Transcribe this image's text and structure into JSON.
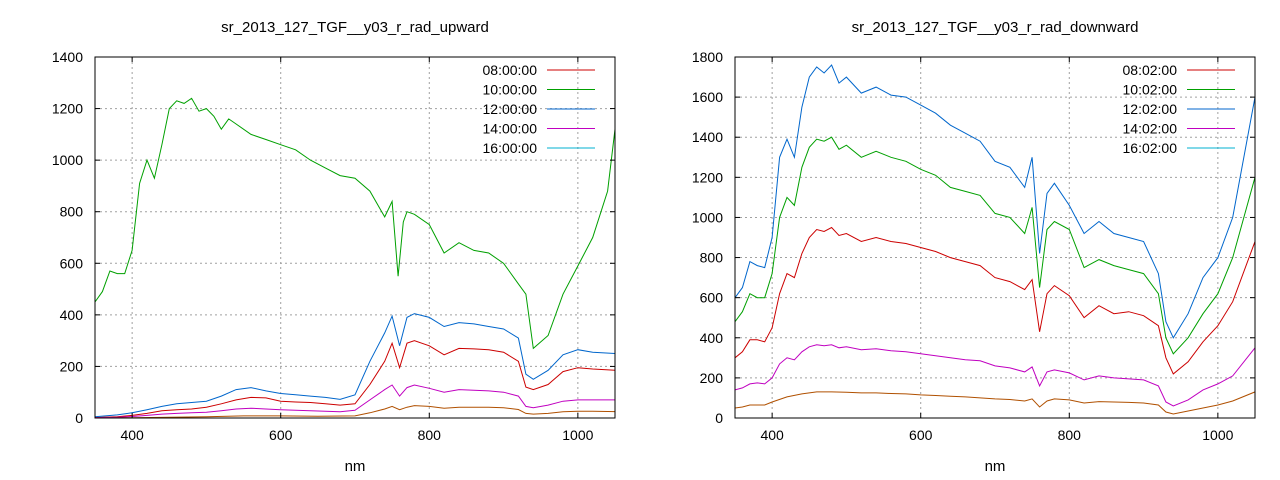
{
  "chart_data": [
    {
      "type": "line",
      "title": "sr_2013_127_TGF__y03_r_rad_upward",
      "xlabel": "nm",
      "ylabel": "",
      "xlim": [
        350,
        1050
      ],
      "ylim": [
        0,
        1400
      ],
      "xticks": [
        400,
        600,
        800,
        1000
      ],
      "yticks": [
        0,
        200,
        400,
        600,
        800,
        1000,
        1200,
        1400
      ],
      "grid": true,
      "legend_position": "top-right",
      "series": [
        {
          "name": "08:00:00",
          "color": "#cc0000",
          "x": [
            350,
            380,
            400,
            420,
            440,
            460,
            480,
            500,
            520,
            540,
            560,
            580,
            600,
            620,
            640,
            660,
            680,
            700,
            720,
            740,
            750,
            760,
            770,
            780,
            800,
            820,
            840,
            860,
            880,
            900,
            920,
            930,
            940,
            960,
            980,
            1000,
            1020,
            1050
          ],
          "y": [
            2,
            5,
            10,
            18,
            28,
            32,
            35,
            42,
            55,
            70,
            80,
            78,
            65,
            62,
            60,
            55,
            50,
            55,
            130,
            220,
            290,
            195,
            290,
            300,
            280,
            245,
            270,
            268,
            265,
            255,
            220,
            120,
            110,
            130,
            180,
            195,
            190,
            185
          ]
        },
        {
          "name": "10:00:00",
          "color": "#00a000",
          "x": [
            350,
            360,
            370,
            380,
            390,
            400,
            410,
            420,
            430,
            440,
            450,
            460,
            470,
            480,
            490,
            500,
            510,
            520,
            530,
            540,
            560,
            580,
            600,
            620,
            640,
            660,
            680,
            700,
            720,
            740,
            750,
            758,
            765,
            770,
            780,
            800,
            820,
            840,
            860,
            880,
            900,
            920,
            930,
            940,
            960,
            980,
            1000,
            1020,
            1040,
            1050
          ],
          "y": [
            450,
            490,
            570,
            560,
            560,
            650,
            910,
            1000,
            930,
            1060,
            1200,
            1230,
            1220,
            1240,
            1190,
            1200,
            1170,
            1120,
            1160,
            1140,
            1100,
            1080,
            1060,
            1040,
            1000,
            970,
            940,
            930,
            880,
            780,
            840,
            550,
            760,
            800,
            790,
            750,
            640,
            680,
            650,
            640,
            600,
            520,
            480,
            270,
            320,
            480,
            590,
            700,
            880,
            1120
          ]
        },
        {
          "name": "12:00:00",
          "color": "#0066cc",
          "x": [
            350,
            380,
            400,
            420,
            440,
            460,
            480,
            500,
            520,
            540,
            560,
            580,
            600,
            620,
            640,
            660,
            680,
            700,
            720,
            740,
            750,
            760,
            770,
            780,
            800,
            820,
            840,
            860,
            880,
            900,
            920,
            930,
            940,
            960,
            980,
            1000,
            1020,
            1050
          ],
          "y": [
            5,
            12,
            20,
            32,
            45,
            55,
            60,
            65,
            85,
            110,
            118,
            105,
            95,
            90,
            85,
            80,
            72,
            90,
            220,
            330,
            395,
            280,
            390,
            405,
            390,
            355,
            370,
            365,
            355,
            345,
            310,
            170,
            150,
            185,
            245,
            265,
            255,
            250
          ]
        },
        {
          "name": "14:00:00",
          "color": "#c000c0",
          "x": [
            350,
            380,
            400,
            420,
            440,
            460,
            480,
            500,
            520,
            540,
            560,
            580,
            600,
            620,
            640,
            660,
            680,
            700,
            720,
            740,
            750,
            760,
            770,
            780,
            800,
            820,
            840,
            860,
            880,
            900,
            920,
            930,
            940,
            960,
            980,
            1000,
            1020,
            1050
          ],
          "y": [
            1,
            3,
            6,
            10,
            15,
            18,
            20,
            22,
            28,
            35,
            38,
            35,
            32,
            30,
            28,
            26,
            24,
            30,
            70,
            110,
            128,
            85,
            118,
            128,
            115,
            100,
            110,
            108,
            105,
            100,
            85,
            45,
            40,
            50,
            65,
            70,
            70,
            70
          ]
        },
        {
          "name": "16:00:00",
          "color": "#00b0d0",
          "x": [
            350,
            400,
            450,
            500,
            550,
            600,
            650,
            700,
            720,
            740,
            760,
            780,
            800,
            820,
            840,
            860,
            880,
            900,
            920,
            940,
            960,
            980,
            1000,
            1020,
            1050
          ],
          "y": [
            0,
            0,
            0,
            0,
            0,
            0,
            0,
            0,
            0,
            0,
            0,
            0,
            0,
            0,
            0,
            0,
            0,
            0,
            0,
            0,
            0,
            0,
            0,
            0,
            0
          ]
        }
      ],
      "extra_series": [
        {
          "name": "",
          "color": "#b05000",
          "x": [
            350,
            400,
            450,
            500,
            550,
            600,
            650,
            700,
            720,
            740,
            750,
            760,
            770,
            780,
            800,
            820,
            840,
            860,
            880,
            900,
            920,
            930,
            940,
            960,
            980,
            1000,
            1020,
            1050
          ],
          "y": [
            0,
            1,
            3,
            5,
            8,
            8,
            7,
            8,
            20,
            35,
            45,
            32,
            42,
            48,
            45,
            38,
            42,
            42,
            42,
            40,
            33,
            18,
            15,
            18,
            24,
            26,
            26,
            25
          ]
        }
      ]
    },
    {
      "type": "line",
      "title": "sr_2013_127_TGF__y03_r_rad_downward",
      "xlabel": "nm",
      "ylabel": "",
      "xlim": [
        350,
        1050
      ],
      "ylim": [
        0,
        1800
      ],
      "xticks": [
        400,
        600,
        800,
        1000
      ],
      "yticks": [
        0,
        200,
        400,
        600,
        800,
        1000,
        1200,
        1400,
        1600,
        1800
      ],
      "grid": true,
      "legend_position": "top-right",
      "series": [
        {
          "name": "08:02:00",
          "color": "#cc0000",
          "x": [
            350,
            360,
            370,
            380,
            390,
            400,
            410,
            420,
            430,
            440,
            450,
            460,
            470,
            480,
            490,
            500,
            520,
            540,
            560,
            580,
            600,
            620,
            640,
            660,
            680,
            700,
            720,
            740,
            750,
            760,
            770,
            780,
            800,
            820,
            840,
            860,
            880,
            900,
            920,
            930,
            940,
            960,
            980,
            1000,
            1020,
            1050
          ],
          "y": [
            300,
            330,
            390,
            390,
            380,
            450,
            620,
            720,
            700,
            820,
            900,
            940,
            930,
            950,
            910,
            920,
            880,
            900,
            880,
            870,
            850,
            830,
            800,
            780,
            760,
            700,
            680,
            640,
            690,
            430,
            620,
            660,
            610,
            500,
            560,
            520,
            530,
            510,
            460,
            300,
            220,
            280,
            380,
            460,
            580,
            880
          ]
        },
        {
          "name": "10:02:00",
          "color": "#00a000",
          "x": [
            350,
            360,
            370,
            380,
            390,
            400,
            410,
            420,
            430,
            440,
            450,
            460,
            470,
            480,
            490,
            500,
            520,
            540,
            560,
            580,
            600,
            620,
            640,
            660,
            680,
            700,
            720,
            740,
            750,
            760,
            770,
            780,
            800,
            820,
            840,
            860,
            880,
            900,
            920,
            930,
            940,
            960,
            980,
            1000,
            1020,
            1050
          ],
          "y": [
            480,
            530,
            620,
            600,
            600,
            720,
            1000,
            1100,
            1060,
            1250,
            1350,
            1390,
            1380,
            1400,
            1340,
            1360,
            1300,
            1330,
            1300,
            1280,
            1240,
            1210,
            1150,
            1130,
            1110,
            1020,
            1000,
            920,
            1050,
            650,
            940,
            980,
            940,
            750,
            790,
            760,
            740,
            720,
            620,
            400,
            320,
            400,
            520,
            620,
            800,
            1200
          ]
        },
        {
          "name": "12:02:00",
          "color": "#0066cc",
          "x": [
            350,
            360,
            370,
            380,
            390,
            400,
            410,
            420,
            430,
            440,
            450,
            460,
            470,
            480,
            490,
            500,
            520,
            540,
            560,
            580,
            600,
            620,
            640,
            660,
            680,
            700,
            720,
            740,
            750,
            760,
            770,
            780,
            800,
            820,
            840,
            860,
            880,
            900,
            920,
            930,
            940,
            960,
            980,
            1000,
            1020,
            1050
          ],
          "y": [
            600,
            650,
            780,
            760,
            750,
            900,
            1300,
            1390,
            1300,
            1550,
            1700,
            1750,
            1720,
            1760,
            1670,
            1700,
            1620,
            1650,
            1610,
            1600,
            1560,
            1520,
            1460,
            1420,
            1380,
            1280,
            1250,
            1150,
            1300,
            820,
            1120,
            1170,
            1060,
            920,
            980,
            920,
            900,
            880,
            720,
            480,
            400,
            520,
            700,
            800,
            1000,
            1600
          ]
        },
        {
          "name": "14:02:00",
          "color": "#c000c0",
          "x": [
            350,
            360,
            370,
            380,
            390,
            400,
            410,
            420,
            430,
            440,
            450,
            460,
            470,
            480,
            490,
            500,
            520,
            540,
            560,
            580,
            600,
            620,
            640,
            660,
            680,
            700,
            720,
            740,
            750,
            760,
            770,
            780,
            800,
            820,
            840,
            860,
            880,
            900,
            920,
            930,
            940,
            960,
            980,
            1000,
            1020,
            1050
          ],
          "y": [
            140,
            150,
            170,
            175,
            170,
            200,
            270,
            300,
            290,
            330,
            355,
            365,
            360,
            365,
            350,
            355,
            340,
            345,
            335,
            330,
            320,
            310,
            300,
            290,
            285,
            260,
            250,
            230,
            255,
            160,
            230,
            240,
            225,
            190,
            210,
            200,
            195,
            190,
            160,
            80,
            60,
            90,
            140,
            170,
            210,
            350
          ]
        },
        {
          "name": "16:02:00",
          "color": "#00b0d0",
          "x": [
            350,
            400,
            450,
            500,
            550,
            600,
            650,
            700,
            750,
            800,
            850,
            900,
            950,
            1000,
            1050
          ],
          "y": [
            0,
            0,
            0,
            0,
            0,
            0,
            0,
            0,
            0,
            0,
            0,
            0,
            0,
            0,
            0
          ]
        }
      ],
      "extra_series": [
        {
          "name": "",
          "color": "#b05000",
          "x": [
            350,
            360,
            370,
            380,
            390,
            400,
            420,
            440,
            460,
            480,
            500,
            520,
            540,
            560,
            580,
            600,
            620,
            640,
            660,
            680,
            700,
            720,
            740,
            750,
            760,
            770,
            780,
            800,
            820,
            840,
            860,
            880,
            900,
            920,
            930,
            940,
            960,
            980,
            1000,
            1020,
            1050
          ],
          "y": [
            50,
            55,
            65,
            65,
            65,
            80,
            105,
            120,
            130,
            130,
            128,
            125,
            125,
            122,
            120,
            115,
            112,
            108,
            105,
            100,
            95,
            92,
            85,
            95,
            55,
            85,
            95,
            90,
            75,
            82,
            80,
            78,
            75,
            65,
            30,
            20,
            35,
            50,
            65,
            85,
            130
          ]
        }
      ]
    }
  ]
}
